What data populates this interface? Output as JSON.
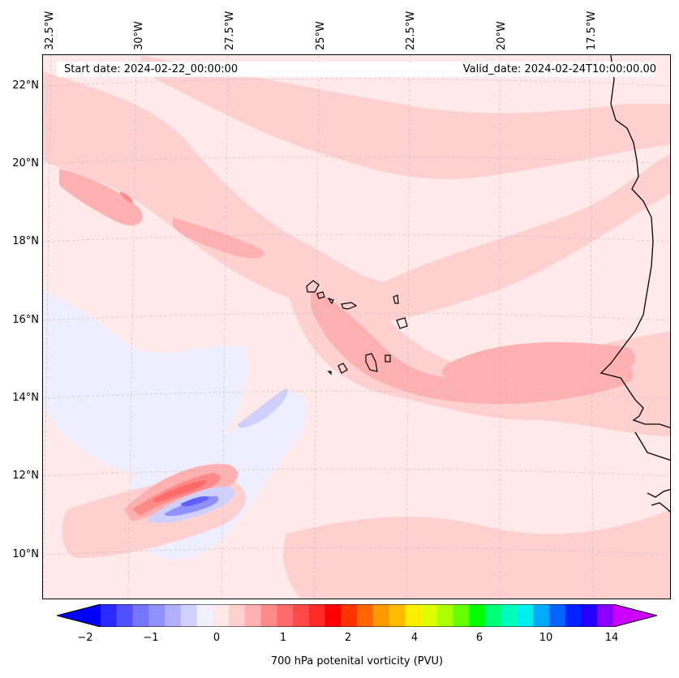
{
  "map": {
    "start_date": "Start date: 2024-02-22_00:00:00",
    "valid_date": "Valid_date: 2024-02-24T10:00:00.00",
    "longitude_labels": [
      "32.5°W",
      "30°W",
      "27.5°W",
      "25°W",
      "22.5°W",
      "20°W",
      "17.5°W"
    ],
    "latitude_labels": [
      "22°N",
      "20°N",
      "18°N",
      "16°N",
      "14°N",
      "12°N",
      "10°N"
    ],
    "variable": "700 hPa potential vorticity"
  },
  "colorbar": {
    "title": "700 hPa potenital vorticity (PVU)",
    "tick_labels": [
      "−2",
      "−1",
      "0",
      "1",
      "2",
      "4",
      "6",
      "10",
      "14"
    ],
    "colors": [
      "#0000ff",
      "#2a2aff",
      "#5050ff",
      "#7575ff",
      "#9090ff",
      "#b0b0ff",
      "#d0d0ff",
      "#f0f0ff",
      "#ffe8e8",
      "#ffd0d0",
      "#ffb0b0",
      "#ff8a8a",
      "#ff6a6a",
      "#ff4a4a",
      "#ff2a2a",
      "#ff0000",
      "#ff3300",
      "#ff6600",
      "#ff9900",
      "#ffbb00",
      "#ffee00",
      "#ddff00",
      "#aaff00",
      "#66ff00",
      "#00ff00",
      "#00ff77",
      "#00ffbb",
      "#00eeee",
      "#00aaff",
      "#0066ff",
      "#0022ff",
      "#2200ff",
      "#8800ff",
      "#cc00ff"
    ],
    "extend": "both"
  }
}
